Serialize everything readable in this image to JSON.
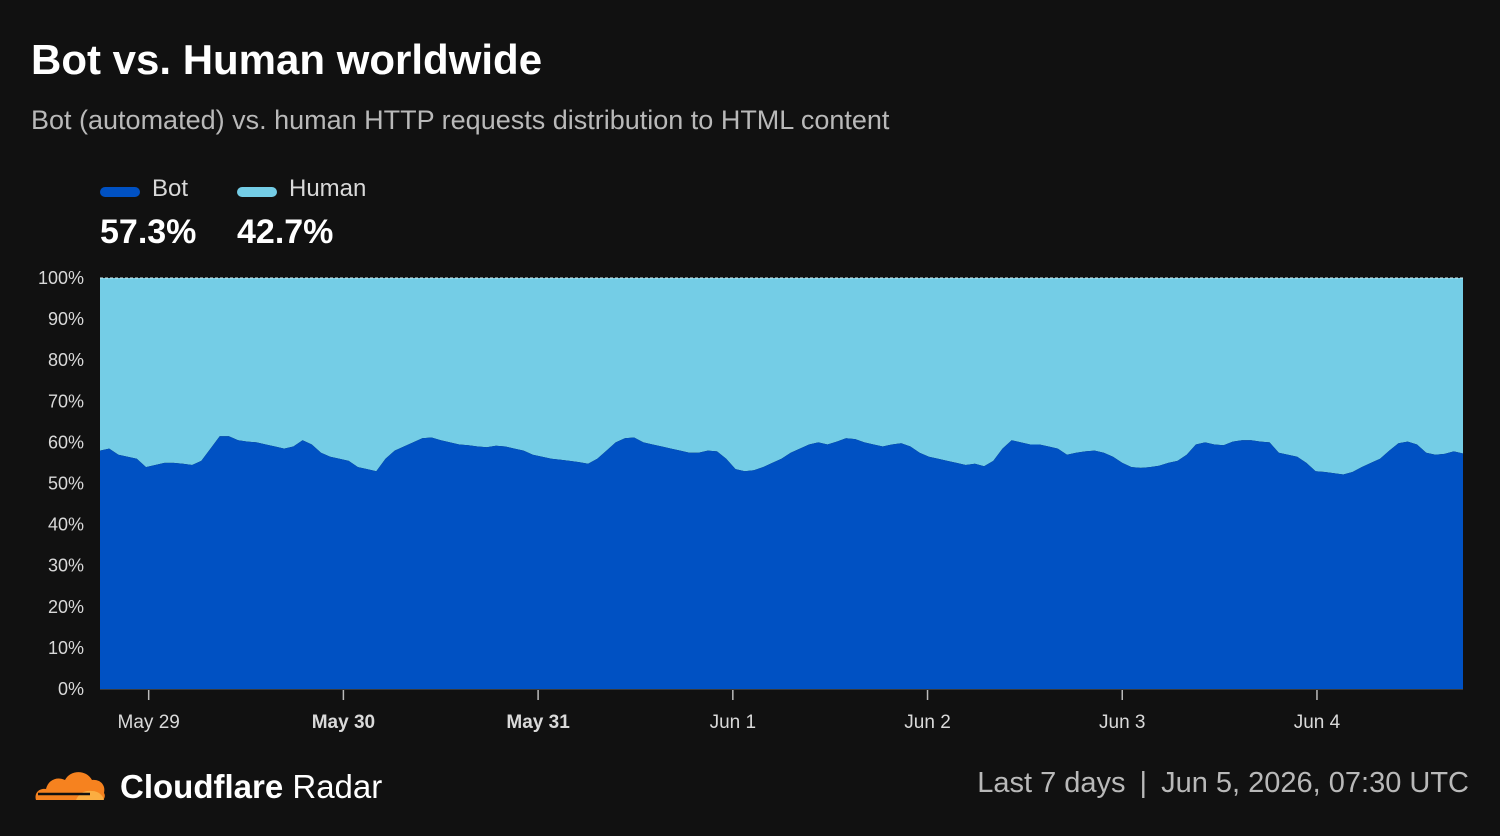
{
  "title": "Bot vs. Human worldwide",
  "subtitle": "Bot (automated) vs. human HTTP requests distribution to HTML content",
  "legend": {
    "bot": {
      "label": "Bot",
      "value": "57.3%",
      "color": "#0051c3"
    },
    "human": {
      "label": "Human",
      "value": "42.7%",
      "color": "#74cde6"
    }
  },
  "footer": {
    "brand_bold": "Cloudflare",
    "brand_light": "Radar",
    "range": "Last 7 days",
    "separator": "|",
    "timestamp": "Jun 5, 2026, 07:30 UTC"
  },
  "chart_data": {
    "type": "area",
    "stacked": true,
    "y_unit": "%",
    "ylim": [
      0,
      100
    ],
    "y_ticks": [
      "0%",
      "10%",
      "20%",
      "30%",
      "40%",
      "50%",
      "60%",
      "70%",
      "80%",
      "90%",
      "100%"
    ],
    "grid": false,
    "x_ticks": [
      {
        "label": "May 29",
        "day": 0,
        "bold": false
      },
      {
        "label": "May 30",
        "day": 1,
        "bold": true
      },
      {
        "label": "May 31",
        "day": 2,
        "bold": true
      },
      {
        "label": "Jun 1",
        "day": 3,
        "bold": false
      },
      {
        "label": "Jun 2",
        "day": 4,
        "bold": false
      },
      {
        "label": "Jun 3",
        "day": 5,
        "bold": false
      },
      {
        "label": "Jun 4",
        "day": 6,
        "bold": false
      }
    ],
    "x_start_day": -0.25,
    "x_end_day": 6.75,
    "series": [
      {
        "name": "Bot",
        "color": "#0051c3",
        "values": [
          58,
          58.5,
          57,
          56.5,
          56,
          54,
          54.5,
          55,
          55,
          54.8,
          54.5,
          55.5,
          58.5,
          61.5,
          61.5,
          60.5,
          60.2,
          60,
          59.5,
          59,
          58.5,
          59,
          60.5,
          59.5,
          57.5,
          56.5,
          56,
          55.5,
          54,
          53.5,
          53,
          56,
          58,
          59,
          60,
          61,
          61.2,
          60.5,
          60,
          59.5,
          59.3,
          59,
          58.8,
          59.2,
          59,
          58.5,
          58,
          57,
          56.5,
          56,
          55.8,
          55.5,
          55.2,
          54.8,
          56,
          58,
          60,
          61,
          61.2,
          60,
          59.5,
          59,
          58.5,
          58,
          57.5,
          57.5,
          58,
          57.8,
          56,
          53.5,
          53,
          53.2,
          54,
          55,
          56,
          57.5,
          58.5,
          59.5,
          60,
          59.5,
          60.2,
          61,
          60.8,
          60,
          59.5,
          59,
          59.5,
          59.8,
          59,
          57.5,
          56.5,
          56,
          55.5,
          55,
          54.5,
          54.8,
          54.2,
          55.5,
          58.5,
          60.5,
          60,
          59.5,
          59.5,
          59,
          58.5,
          57,
          57.5,
          57.8,
          58,
          57.5,
          56.5,
          55,
          54,
          53.8,
          54,
          54.3,
          55,
          55.5,
          57,
          59.5,
          60,
          59.5,
          59.3,
          60.2,
          60.5,
          60.5,
          60.2,
          60,
          57.5,
          57,
          56.5,
          55,
          53,
          52.8,
          52.5,
          52.2,
          52.8,
          54,
          55,
          56,
          58,
          59.8,
          60.2,
          59.5,
          57.5,
          57,
          57.2,
          57.8,
          57.3
        ]
      },
      {
        "name": "Human",
        "color": "#74cde6",
        "values": "remainder to 100%"
      }
    ]
  }
}
